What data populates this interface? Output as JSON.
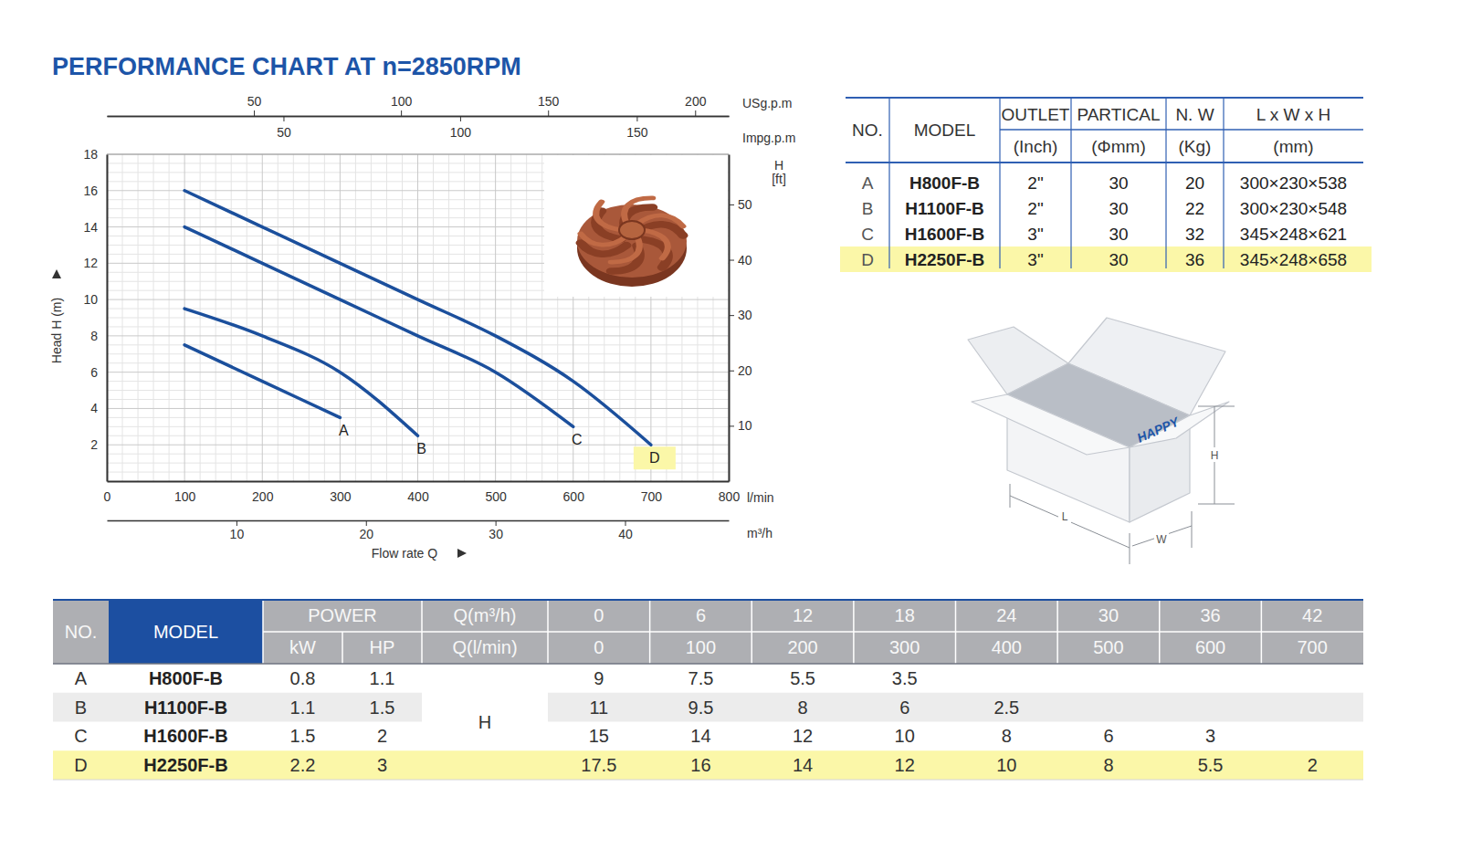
{
  "title": "PERFORMANCE CHART AT n=2850RPM",
  "chart_data": {
    "type": "line",
    "x_label": "Flow rate Q",
    "y_label": "Head H (m)",
    "x_unit": "l/min",
    "x": [
      100,
      200,
      300,
      400,
      500,
      600,
      700
    ],
    "series": [
      {
        "name": "A",
        "color": "#1b4f9c",
        "values": [
          7.5,
          5.5,
          3.5,
          null,
          null,
          null,
          null
        ]
      },
      {
        "name": "B",
        "color": "#1b4f9c",
        "values": [
          9.5,
          8,
          6,
          2.5,
          null,
          null,
          null
        ]
      },
      {
        "name": "C",
        "color": "#1b4f9c",
        "values": [
          14,
          12,
          10,
          8,
          6,
          3,
          null
        ]
      },
      {
        "name": "D",
        "color": "#1b4f9c",
        "values": [
          16,
          14,
          12,
          10,
          8,
          5.5,
          2
        ]
      }
    ],
    "xlim": [
      0,
      800
    ],
    "xticks": [
      0,
      100,
      200,
      300,
      400,
      500,
      600,
      700,
      800
    ],
    "ylim": [
      0,
      18
    ],
    "yticks": [
      2,
      4,
      6,
      8,
      10,
      12,
      14,
      16,
      18
    ],
    "y2_label": "H [ft]",
    "y2lim": [
      0,
      59.06
    ],
    "y2ticks": [
      10,
      20,
      30,
      40,
      50
    ],
    "x2_label": "USg.p.m",
    "x2lim": [
      0,
      211.4
    ],
    "x2ticks": [
      50,
      100,
      150,
      200
    ],
    "x3_label": "Impg.p.m",
    "x3lim": [
      0,
      176
    ],
    "x3ticks": [
      50,
      100,
      150
    ],
    "x4_label": "m³/h",
    "x4lim": [
      0,
      48
    ],
    "x4ticks": [
      10,
      20,
      30,
      40
    ],
    "grid": true
  },
  "spec_table": {
    "columns": [
      {
        "label": "NO."
      },
      {
        "label": "MODEL"
      },
      {
        "label": "OUTLET",
        "unit": "(Inch)"
      },
      {
        "label": "PARTICAL",
        "unit": "(Φmm)"
      },
      {
        "label": "N. W",
        "unit": "(Kg)"
      },
      {
        "label": "L x W x H",
        "unit": "(mm)"
      }
    ],
    "rows": [
      [
        "A",
        "H800F-B",
        "2\"",
        30,
        20,
        "300×230×538"
      ],
      [
        "B",
        "H1100F-B",
        "2\"",
        30,
        22,
        "300×230×548"
      ],
      [
        "C",
        "H1600F-B",
        "3\"",
        30,
        32,
        "345×248×621"
      ],
      [
        "D",
        "H2250F-B",
        "3\"",
        30,
        36,
        "345×248×658"
      ]
    ]
  },
  "box": {
    "brand": "HAPPY",
    "length_label": "L",
    "width_label": "W",
    "height_label": "H"
  },
  "performance_table": {
    "no_label": "NO.",
    "model_label": "MODEL",
    "power_label": "POWER",
    "power_units": [
      "kW",
      "HP"
    ],
    "q_labels": [
      "Q(m³/h)",
      "Q(l/min)"
    ],
    "head_label": "H",
    "q_m3h": [
      0,
      6,
      12,
      18,
      24,
      30,
      36,
      42
    ],
    "q_lmin": [
      0,
      100,
      200,
      300,
      400,
      500,
      600,
      700
    ],
    "rows": [
      {
        "no": "A",
        "model": "H800F-B",
        "kw": 0.8,
        "hp": 1.1,
        "head": [
          9,
          7.5,
          5.5,
          3.5,
          null,
          null,
          null,
          null
        ]
      },
      {
        "no": "B",
        "model": "H1100F-B",
        "kw": 1.1,
        "hp": 1.5,
        "head": [
          11,
          9.5,
          8,
          6,
          2.5,
          null,
          null,
          null
        ]
      },
      {
        "no": "C",
        "model": "H1600F-B",
        "kw": 1.5,
        "hp": 2,
        "head": [
          15,
          14,
          12,
          10,
          8,
          6,
          3,
          null
        ]
      },
      {
        "no": "D",
        "model": "H2250F-B",
        "kw": 2.2,
        "hp": 3,
        "head": [
          17.5,
          16,
          14,
          12,
          10,
          8,
          5.5,
          2
        ]
      }
    ]
  }
}
